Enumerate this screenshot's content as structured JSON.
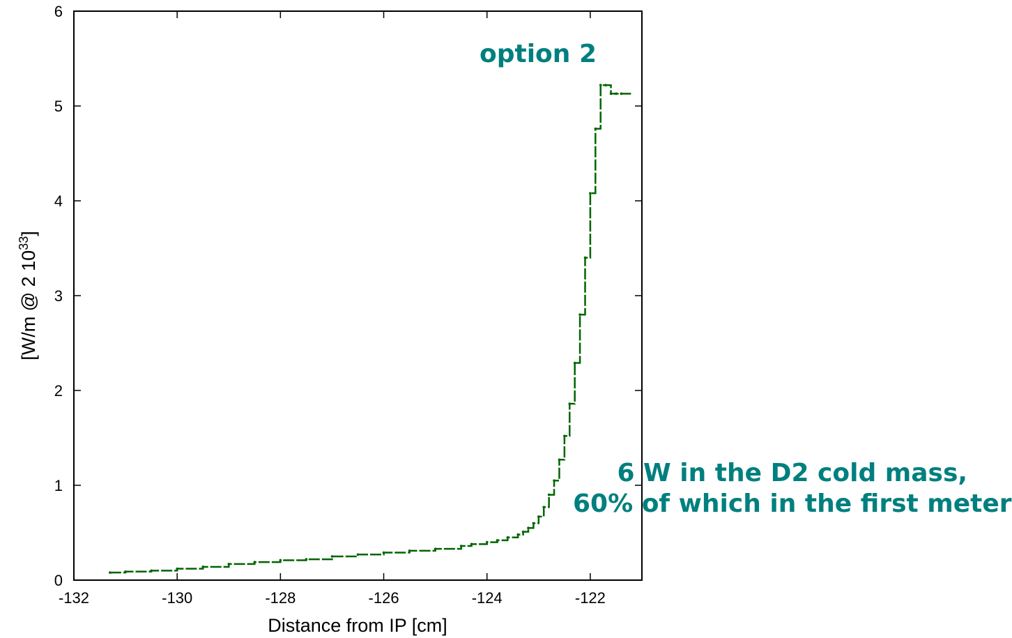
{
  "chart_data": {
    "type": "line",
    "title": "",
    "xlabel": "Distance from IP [cm]",
    "ylabel_main": "[W/m @ 2 10",
    "ylabel_sup": "33",
    "ylabel_end": "]",
    "xlim": [
      -132,
      -121
    ],
    "ylim": [
      0,
      6
    ],
    "xticks": [
      -132,
      -130,
      -128,
      -126,
      -124,
      -122
    ],
    "yticks": [
      0,
      1,
      2,
      3,
      4,
      5,
      6
    ],
    "grid": false,
    "legend": "none",
    "series": [
      {
        "color": "#006400",
        "x": [
          -131.3,
          -131.0,
          -130.5,
          -130.0,
          -129.5,
          -129.0,
          -128.5,
          -128.0,
          -127.5,
          -127.0,
          -126.5,
          -126.0,
          -125.5,
          -125.0,
          -124.5,
          -124.3,
          -124.0,
          -123.8,
          -123.6,
          -123.4,
          -123.3,
          -123.2,
          -123.1,
          -123.0,
          -122.9,
          -122.8,
          -122.7,
          -122.6,
          -122.5,
          -122.4,
          -122.3,
          -122.2,
          -122.1,
          -122.0,
          -121.9,
          -121.8,
          -121.7,
          -121.6,
          -121.5,
          -121.4
        ],
        "y": [
          0.08,
          0.09,
          0.1,
          0.12,
          0.14,
          0.17,
          0.19,
          0.21,
          0.22,
          0.25,
          0.27,
          0.29,
          0.31,
          0.33,
          0.36,
          0.38,
          0.4,
          0.42,
          0.45,
          0.48,
          0.51,
          0.55,
          0.6,
          0.67,
          0.77,
          0.9,
          1.05,
          1.27,
          1.52,
          1.86,
          2.29,
          2.8,
          3.4,
          4.08,
          4.76,
          5.22,
          5.22,
          5.13,
          5.13,
          5.13
        ]
      }
    ],
    "annotations": {
      "top": "option 2",
      "line1": "6 W in the D2 cold mass,",
      "line2": "60% of which in the first meter"
    }
  }
}
